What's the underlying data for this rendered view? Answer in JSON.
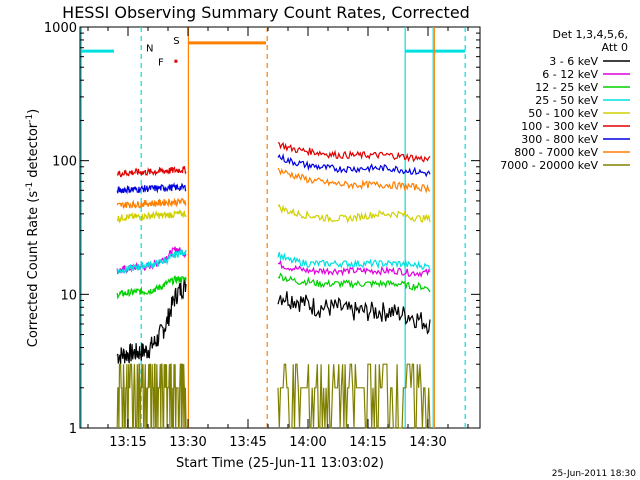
{
  "chart_data": {
    "type": "line",
    "title": "HESSI Observing Summary Count Rates, Corrected",
    "xlabel": "Start Time (25-Jun-11 13:03:02)",
    "ylabel_main": "Corrected Count Rate (s",
    "ylabel_sup1": "-1",
    "ylabel_mid": " detector",
    "ylabel_sup2": "-1",
    "ylabel_end": ")",
    "yscale": "log",
    "ylim": [
      1,
      1000
    ],
    "y_ticks": [
      {
        "v": 1,
        "label": "1"
      },
      {
        "v": 10,
        "label": "10"
      },
      {
        "v": 100,
        "label": "100"
      },
      {
        "v": 1000,
        "label": "1000"
      }
    ],
    "x_unit": "minutes since 13:03:02",
    "xlim": [
      0,
      100
    ],
    "x_ticks": [
      {
        "v": 12,
        "label": "13:15"
      },
      {
        "v": 27,
        "label": "13:30"
      },
      {
        "v": 42,
        "label": "13:45"
      },
      {
        "v": 57,
        "label": "14:00"
      },
      {
        "v": 72,
        "label": "14:15"
      },
      {
        "v": 87,
        "label": "14:30"
      }
    ],
    "legend_header": [
      "Det 1,3,4,5,6,",
      "Att 0"
    ],
    "series": [
      {
        "name": "3 - 6 keV",
        "color": "#000000",
        "seg1": [
          3.5,
          3.6,
          3.7,
          3.8,
          4.5,
          6,
          10,
          12
        ],
        "seg2": [
          10,
          9.5,
          9,
          8.5,
          8,
          8,
          8,
          7.5,
          7.5,
          7.5,
          7.5,
          7.5,
          7.2,
          7,
          6.5,
          6
        ]
      },
      {
        "name": "6 - 12 keV",
        "color": "#e000e0",
        "seg1": [
          15,
          15.5,
          16,
          16,
          17,
          19,
          22,
          20
        ],
        "seg2": [
          17,
          16,
          15.5,
          15,
          15,
          15,
          15,
          15,
          15,
          15,
          15,
          15,
          15,
          14.5,
          14.5,
          14.5
        ]
      },
      {
        "name": "12 - 25 keV",
        "color": "#00d000",
        "seg1": [
          10,
          10.2,
          10.5,
          10.5,
          11,
          12,
          13,
          13
        ],
        "seg2": [
          14,
          13,
          12.5,
          12.5,
          12,
          12,
          12,
          12,
          12,
          12,
          12,
          12,
          12,
          11.5,
          11.5,
          11
        ]
      },
      {
        "name": "25 - 50 keV",
        "color": "#00e0e0",
        "seg1": [
          15,
          15.5,
          16,
          16.5,
          17,
          18,
          20,
          21
        ],
        "seg2": [
          20,
          18,
          17.5,
          17,
          17,
          17,
          17,
          17,
          17,
          17,
          17,
          17,
          17,
          16.5,
          16.5,
          16
        ]
      },
      {
        "name": "50 - 100 keV",
        "color": "#d0d000",
        "seg1": [
          37,
          38,
          38,
          38.5,
          39,
          39,
          40,
          40
        ],
        "seg2": [
          45,
          42,
          40,
          39,
          38,
          37,
          37,
          37,
          38,
          39,
          40,
          40,
          40,
          38,
          37,
          37
        ]
      },
      {
        "name": "100 - 300 keV",
        "color": "#e00000",
        "seg1": [
          80,
          81,
          82,
          82,
          83,
          84,
          85,
          86
        ],
        "seg2": [
          135,
          125,
          120,
          118,
          115,
          112,
          110,
          110,
          110,
          110,
          110,
          110,
          108,
          106,
          104,
          102
        ]
      },
      {
        "name": "300 - 800 keV",
        "color": "#0000e0",
        "seg1": [
          60,
          61,
          61,
          62,
          62,
          63,
          63,
          63
        ],
        "seg2": [
          108,
          100,
          96,
          92,
          90,
          88,
          87,
          87,
          87,
          88,
          88,
          88,
          86,
          84,
          82,
          80
        ]
      },
      {
        "name": "800 - 7000 keV",
        "color": "#ff7f00",
        "seg1": [
          46,
          47,
          47,
          48,
          48,
          49,
          49,
          50
        ],
        "seg2": [
          85,
          80,
          76,
          72,
          70,
          68,
          67,
          66,
          66,
          66,
          66,
          66,
          65,
          64,
          63,
          62
        ]
      },
      {
        "name": "7000 - 20000 keV",
        "color": "#808000",
        "seg1": [
          2,
          2.2,
          2.3,
          2.5,
          2.3,
          2.4,
          2.5,
          2.3
        ],
        "seg2": [
          2.2,
          2,
          2,
          1.8,
          1.7,
          1.6,
          2,
          2.5,
          2.5,
          2.7,
          2.8,
          2.8,
          2.7,
          2.6,
          2.6,
          2.6
        ]
      }
    ],
    "seg1_range": [
      9.3,
      26.5
    ],
    "seg2_range": [
      49.5,
      87.5
    ],
    "annotations": {
      "N": {
        "label": "N",
        "color": "#00c8ff"
      },
      "S": {
        "label": "S",
        "color": "#ff7f00"
      },
      "F": {
        "label": "F",
        "color": "#e00000"
      }
    },
    "footer_date": "25-Jun-2011 18:30"
  }
}
